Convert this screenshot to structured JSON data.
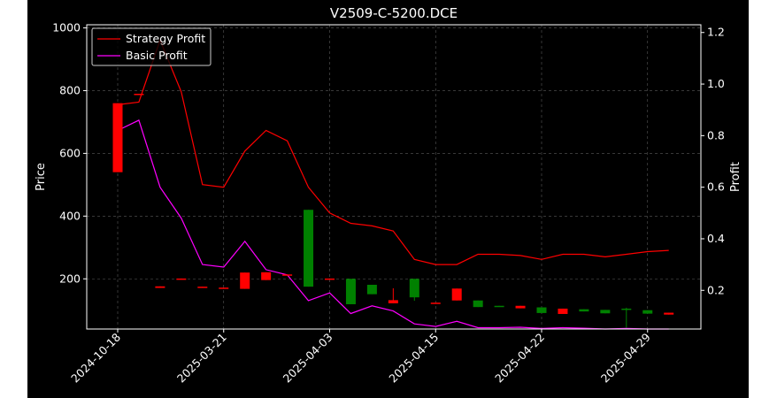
{
  "chart_data": {
    "type": "candlestick+line",
    "title": "V2509-C-5200.DCE",
    "ylabel_left": "Price",
    "ylabel_right": "Profit",
    "left_ylim": [
      40,
      1010
    ],
    "right_ylim": [
      0.05,
      1.23
    ],
    "left_yticks": [
      "200",
      "400",
      "600",
      "800",
      "1000"
    ],
    "right_yticks": [
      "0.2",
      "0.4",
      "0.6",
      "0.8",
      "1.0",
      "1.2"
    ],
    "left_ytick_values": [
      200,
      400,
      600,
      800,
      1000
    ],
    "right_ytick_values": [
      0.2,
      0.4,
      0.6,
      0.8,
      1.0,
      1.2
    ],
    "xtick_labels": [
      "2024-10-18",
      "2025-03-21",
      "2025-04-03",
      "2025-04-15",
      "2025-04-22",
      "2025-04-29"
    ],
    "xtick_index": [
      0,
      5,
      10,
      15,
      20,
      25
    ],
    "grid": true,
    "legend_position": "top-left",
    "background": "#000000",
    "colors": {
      "up": "#008000",
      "down": "#ff0000",
      "strategy": "#ff0000",
      "basic": "#ff00ff",
      "text": "#ffffff",
      "grid": "#808080"
    },
    "candles": [
      {
        "i": 0,
        "o": 760,
        "c": 540,
        "h": 760,
        "l": 540
      },
      {
        "i": 1,
        "o": 790,
        "c": 788,
        "h": 790,
        "l": 788
      },
      {
        "i": 2,
        "o": 176,
        "c": 171,
        "h": 176,
        "l": 171
      },
      {
        "i": 3,
        "o": 201,
        "c": 199,
        "h": 201,
        "l": 199
      },
      {
        "i": 4,
        "o": 175,
        "c": 172,
        "h": 175,
        "l": 172
      },
      {
        "i": 5,
        "o": 172,
        "c": 168,
        "h": 172,
        "l": 168
      },
      {
        "i": 6,
        "o": 220,
        "c": 168,
        "h": 220,
        "l": 168
      },
      {
        "i": 7,
        "o": 221,
        "c": 196,
        "h": 221,
        "l": 196
      },
      {
        "i": 8,
        "o": 214,
        "c": 212,
        "h": 214,
        "l": 212
      },
      {
        "i": 9,
        "o": 175,
        "c": 420,
        "h": 420,
        "l": 175
      },
      {
        "i": 10,
        "o": 201,
        "c": 199,
        "h": 201,
        "l": 199
      },
      {
        "i": 11,
        "o": 119,
        "c": 200,
        "h": 200,
        "l": 119
      },
      {
        "i": 12,
        "o": 151,
        "c": 181,
        "h": 181,
        "l": 151
      },
      {
        "i": 13,
        "o": 132,
        "c": 122,
        "h": 170,
        "l": 122
      },
      {
        "i": 14,
        "o": 141,
        "c": 200,
        "h": 200,
        "l": 130
      },
      {
        "i": 15,
        "o": 124,
        "c": 122,
        "h": 124,
        "l": 122
      },
      {
        "i": 16,
        "o": 169,
        "c": 131,
        "h": 169,
        "l": 131
      },
      {
        "i": 17,
        "o": 110,
        "c": 131,
        "h": 131,
        "l": 110
      },
      {
        "i": 18,
        "o": 111,
        "c": 114,
        "h": 114,
        "l": 111
      },
      {
        "i": 19,
        "o": 114,
        "c": 106,
        "h": 114,
        "l": 106
      },
      {
        "i": 20,
        "o": 91,
        "c": 109,
        "h": 109,
        "l": 91
      },
      {
        "i": 21,
        "o": 105,
        "c": 88,
        "h": 105,
        "l": 88
      },
      {
        "i": 22,
        "o": 96,
        "c": 103,
        "h": 103,
        "l": 96
      },
      {
        "i": 23,
        "o": 90,
        "c": 101,
        "h": 101,
        "l": 90
      },
      {
        "i": 24,
        "o": 102,
        "c": 105,
        "h": 108,
        "l": 44
      },
      {
        "i": 25,
        "o": 89,
        "c": 100,
        "h": 100,
        "l": 89
      },
      {
        "i": 26,
        "o": 92,
        "c": 86,
        "h": 92,
        "l": 86
      }
    ],
    "series": [
      {
        "name": "Strategy Profit",
        "values": [
          0.92,
          0.93,
          1.17,
          0.97,
          0.61,
          0.6,
          0.74,
          0.82,
          0.78,
          0.6,
          0.5,
          0.46,
          0.45,
          0.43,
          0.32,
          0.3,
          0.3,
          0.34,
          0.34,
          0.335,
          0.32,
          0.34,
          0.34,
          0.33,
          0.34,
          0.35,
          0.355
        ]
      },
      {
        "name": "Basic Profit",
        "values": [
          0.82,
          0.86,
          0.6,
          0.48,
          0.3,
          0.29,
          0.39,
          0.28,
          0.26,
          0.16,
          0.19,
          0.11,
          0.14,
          0.12,
          0.07,
          0.06,
          0.08,
          0.055,
          0.055,
          0.057,
          0.052,
          0.055,
          0.053,
          0.05,
          0.052,
          0.05,
          0.05
        ]
      }
    ]
  }
}
